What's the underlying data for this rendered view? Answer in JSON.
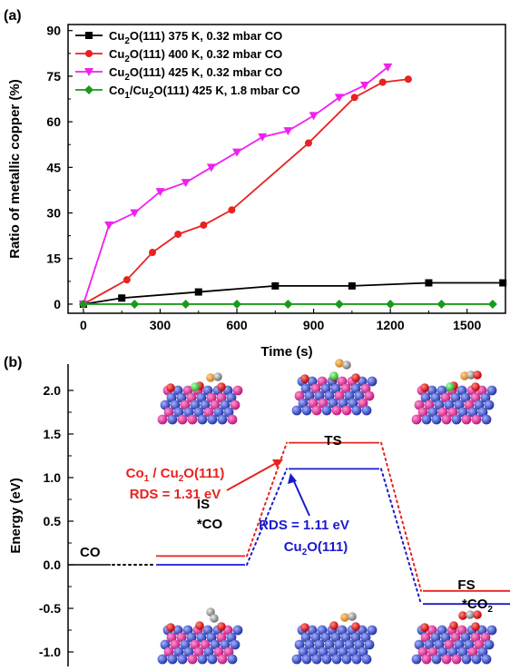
{
  "chart_data": [
    {
      "panel": "(a)",
      "type": "line",
      "xlabel": "Time (s)",
      "ylabel": "Ratio of metallic copper (%)",
      "xlim": [
        -60,
        1650
      ],
      "ylim": [
        -3,
        92
      ],
      "xticks": [
        0,
        300,
        600,
        900,
        1200,
        1500
      ],
      "yticks": [
        0,
        15,
        30,
        45,
        60,
        75,
        90
      ],
      "legend_placement": "top-left",
      "series": [
        {
          "name": "Cu2O(111) 375 K, 0.32 mbar CO",
          "label_parts": [
            [
              "Cu",
              ""
            ],
            [
              "2",
              "sub"
            ],
            [
              "O(111) 375 K, 0.32 mbar CO",
              ""
            ]
          ],
          "color": "#000000",
          "marker": "square",
          "x": [
            0,
            150,
            450,
            750,
            1050,
            1350,
            1640
          ],
          "y": [
            0,
            2,
            4,
            6,
            6,
            7,
            7
          ]
        },
        {
          "name": "Cu2O(111) 400 K, 0.32 mbar CO",
          "label_parts": [
            [
              "Cu",
              ""
            ],
            [
              "2",
              "sub"
            ],
            [
              "O(111) 400 K, 0.32 mbar CO",
              ""
            ]
          ],
          "color": "#e8221f",
          "marker": "circle",
          "x": [
            0,
            170,
            270,
            370,
            470,
            580,
            880,
            1060,
            1170,
            1270
          ],
          "y": [
            0,
            8,
            17,
            23,
            26,
            31,
            53,
            68,
            73,
            74
          ]
        },
        {
          "name": "Cu2O(111) 425 K, 0.32 mbar CO",
          "label_parts": [
            [
              "Cu",
              ""
            ],
            [
              "2",
              "sub"
            ],
            [
              "O(111) 425 K, 0.32 mbar CO",
              ""
            ]
          ],
          "color": "#f020f0",
          "marker": "triangle-down",
          "x": [
            0,
            100,
            200,
            300,
            400,
            500,
            600,
            700,
            800,
            900,
            1000,
            1100,
            1190
          ],
          "y": [
            0,
            26,
            30,
            37,
            40,
            45,
            50,
            55,
            57,
            62,
            68,
            72,
            78
          ]
        },
        {
          "name": "Co1/Cu2O(111) 425 K, 1.8 mbar CO",
          "label_parts": [
            [
              "Co",
              ""
            ],
            [
              "1",
              "sub"
            ],
            [
              "/Cu",
              ""
            ],
            [
              "2",
              "sub"
            ],
            [
              "O(111) 425 K, 1.8 mbar CO",
              ""
            ]
          ],
          "color": "#1a9a1a",
          "marker": "diamond",
          "x": [
            0,
            200,
            400,
            600,
            800,
            1000,
            1200,
            1400,
            1600
          ],
          "y": [
            0,
            0,
            0,
            0,
            0,
            0,
            0,
            0,
            0
          ]
        }
      ]
    },
    {
      "panel": "(b)",
      "type": "energy-profile",
      "ylabel": "Energy (eV)",
      "ylim": [
        -1.1,
        2.0
      ],
      "yticks": [
        "-1.0",
        "-0.5",
        "0.0",
        "0.5",
        "1.0",
        "1.5",
        "2.0"
      ],
      "states": {
        "co": "CO",
        "is": "IS",
        "is_ads": "*CO",
        "ts": "TS",
        "fs": "FS",
        "fs_ads_parts": [
          [
            "*CO",
            ""
          ],
          [
            "2",
            "sub"
          ]
        ]
      },
      "levels": {
        "co": 0.0,
        "co1_cu2o": {
          "is": 0.1,
          "ts": 1.4,
          "fs": -0.3,
          "color": "#e8221f"
        },
        "cu2o": {
          "is": 0.0,
          "ts": 1.1,
          "fs": -0.45,
          "color": "#1a1acc"
        }
      },
      "annotations": {
        "red_label_parts": [
          [
            "Co",
            ""
          ],
          [
            "1",
            "sub"
          ],
          [
            " / Cu",
            ""
          ],
          [
            "2",
            "sub"
          ],
          [
            "O(111)",
            ""
          ]
        ],
        "red_rds": "RDS = 1.31 eV",
        "blue_rds": "RDS = 1.11 eV",
        "blue_label_parts": [
          [
            "Cu",
            ""
          ],
          [
            "2",
            "sub"
          ],
          [
            "O(111)",
            ""
          ]
        ]
      }
    }
  ]
}
